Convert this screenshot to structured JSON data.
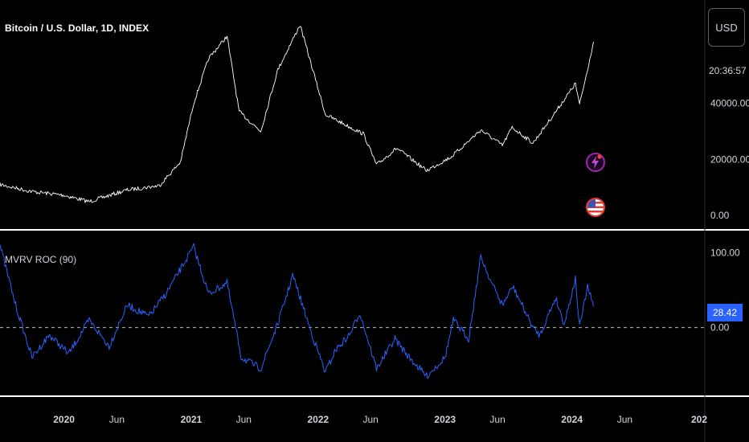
{
  "header": {
    "symbol_title": "Bitcoin / U.S. Dollar, 1D, INDEX",
    "currency_button": "USD",
    "countdown": "20:36:57"
  },
  "indicator": {
    "title": "MVRV ROC (90)",
    "last_value": "28.42"
  },
  "colors": {
    "background": "#000000",
    "price_line": "#ffffff",
    "indicator_line": "#2962ff",
    "zero_line": "#b2b5be",
    "separator": "#ffffff"
  },
  "icons": [
    "flash-icon",
    "us-flag-icon"
  ],
  "chart_data": [
    {
      "type": "line",
      "series": [
        {
          "x": [
            "2019-07-01",
            "2019-10-01",
            "2020-01-01",
            "2020-03-13",
            "2020-07-01",
            "2020-10-01",
            "2020-12-01",
            "2021-01-08",
            "2021-02-20",
            "2021-04-14",
            "2021-05-19",
            "2021-07-20",
            "2021-09-07",
            "2021-11-10",
            "2022-01-22",
            "2022-05-12",
            "2022-06-18",
            "2022-08-15",
            "2022-11-09",
            "2023-01-20",
            "2023-04-14",
            "2023-06-15",
            "2023-07-13",
            "2023-09-11",
            "2023-11-01",
            "2024-01-11",
            "2024-01-23",
            "2024-02-13",
            "2024-03-03"
          ],
          "values": [
            11000,
            8500,
            7200,
            4900,
            9100,
            10600,
            19000,
            40000,
            56000,
            64000,
            37000,
            30000,
            52000,
            68000,
            36000,
            29000,
            18000,
            24000,
            16000,
            21000,
            30500,
            25000,
            31400,
            25800,
            34500,
            47000,
            39500,
            51000,
            62000
          ]
        }
      ],
      "xlabel": "",
      "ylabel": "",
      "ylim": [
        0,
        70000
      ],
      "y_ticks": [
        "0.00",
        "20000.00",
        "40000.00"
      ],
      "grid": false
    },
    {
      "type": "line",
      "title": "MVRV ROC (90)",
      "series": [
        {
          "x": [
            "2019-07-01",
            "2019-08-15",
            "2019-10-01",
            "2019-11-20",
            "2020-01-15",
            "2020-03-13",
            "2020-05-10",
            "2020-07-01",
            "2020-09-01",
            "2020-10-20",
            "2021-01-08",
            "2021-02-20",
            "2021-04-14",
            "2021-05-25",
            "2021-07-20",
            "2021-09-07",
            "2021-10-20",
            "2021-12-15",
            "2022-01-22",
            "2022-02-20",
            "2022-04-01",
            "2022-05-01",
            "2022-06-18",
            "2022-08-10",
            "2022-09-20",
            "2022-11-09",
            "2023-01-01",
            "2023-01-25",
            "2023-03-10",
            "2023-04-14",
            "2023-05-15",
            "2023-06-15",
            "2023-07-15",
            "2023-09-11",
            "2023-10-01",
            "2023-11-15",
            "2023-12-10",
            "2024-01-11",
            "2024-01-23",
            "2024-02-15",
            "2024-03-03"
          ],
          "values": [
            110,
            30,
            -40,
            -10,
            -35,
            10,
            -25,
            30,
            15,
            45,
            108,
            45,
            60,
            -40,
            -55,
            5,
            70,
            -10,
            -60,
            -30,
            -10,
            20,
            -55,
            -15,
            -40,
            -65,
            -40,
            10,
            -15,
            95,
            60,
            30,
            55,
            0,
            -10,
            40,
            5,
            65,
            0,
            55,
            28.42
          ]
        }
      ],
      "xlabel": "",
      "ylabel": "",
      "ylim": [
        -80,
        120
      ],
      "y_ticks": [
        "0.00",
        "100.00"
      ],
      "reference_line": 0,
      "last_value": 28.42,
      "grid": false
    }
  ],
  "time_axis": {
    "labels": [
      {
        "label": "2020",
        "date": "2020-01-01",
        "bold": true
      },
      {
        "label": "Jun",
        "date": "2020-06-01",
        "bold": false
      },
      {
        "label": "2021",
        "date": "2021-01-01",
        "bold": true
      },
      {
        "label": "Jun",
        "date": "2021-06-01",
        "bold": false
      },
      {
        "label": "2022",
        "date": "2022-01-01",
        "bold": true
      },
      {
        "label": "Jun",
        "date": "2022-06-01",
        "bold": false
      },
      {
        "label": "2023",
        "date": "2023-01-01",
        "bold": true
      },
      {
        "label": "Jun",
        "date": "2023-06-01",
        "bold": false
      },
      {
        "label": "2024",
        "date": "2024-01-01",
        "bold": true
      },
      {
        "label": "Jun",
        "date": "2024-06-01",
        "bold": false
      },
      {
        "label": "202",
        "date": "2025-01-01",
        "bold": true
      }
    ]
  }
}
